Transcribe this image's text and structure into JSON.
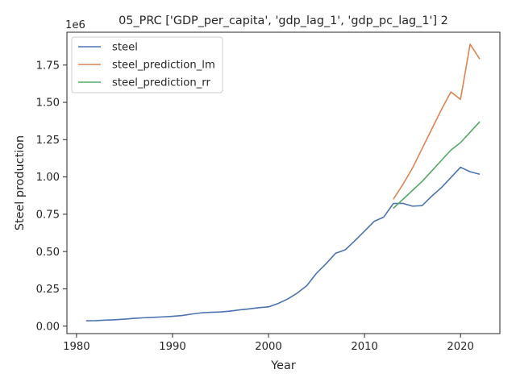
{
  "chart_data": {
    "type": "line",
    "title": "05_PRC ['GDP_per_capita', 'gdp_lag_1', 'gdp_pc_lag_1'] 2",
    "xlabel": "Year",
    "ylabel": "Steel production",
    "y_offset_label": "1e6",
    "xlim": [
      1979.0,
      2024.1
    ],
    "ylim": [
      -0.05,
      1.97
    ],
    "x_ticks": [
      1980,
      1990,
      2000,
      2010,
      2020
    ],
    "x_tick_labels": [
      "1980",
      "1990",
      "2000",
      "2010",
      "2020"
    ],
    "y_ticks": [
      0.0,
      0.25,
      0.5,
      0.75,
      1.0,
      1.25,
      1.5,
      1.75
    ],
    "y_tick_labels": [
      "0.00",
      "0.25",
      "0.50",
      "0.75",
      "1.00",
      "1.25",
      "1.50",
      "1.75"
    ],
    "grid": false,
    "legend_position": "upper-left",
    "series": [
      {
        "name": "steel",
        "color": "#4c72b0",
        "x": [
          1981,
          1982,
          1983,
          1984,
          1985,
          1986,
          1987,
          1988,
          1989,
          1990,
          1991,
          1992,
          1993,
          1994,
          1995,
          1996,
          1997,
          1998,
          1999,
          2000,
          2001,
          2002,
          2003,
          2004,
          2005,
          2006,
          2007,
          2008,
          2009,
          2010,
          2011,
          2012,
          2013,
          2014,
          2015,
          2016,
          2017,
          2018,
          2019,
          2020,
          2021,
          2022
        ],
        "y": [
          0.036,
          0.037,
          0.04,
          0.043,
          0.047,
          0.052,
          0.056,
          0.059,
          0.062,
          0.066,
          0.071,
          0.081,
          0.089,
          0.093,
          0.095,
          0.101,
          0.109,
          0.116,
          0.124,
          0.129,
          0.152,
          0.182,
          0.222,
          0.272,
          0.355,
          0.419,
          0.489,
          0.512,
          0.573,
          0.637,
          0.702,
          0.731,
          0.822,
          0.823,
          0.804,
          0.808,
          0.871,
          0.928,
          0.996,
          1.065,
          1.035,
          1.018
        ]
      },
      {
        "name": "steel_prediction_lm",
        "color": "#dd8452",
        "x": [
          2013,
          2014,
          2015,
          2016,
          2017,
          2018,
          2019,
          2020,
          2021,
          2022
        ],
        "y": [
          0.85,
          0.95,
          1.06,
          1.19,
          1.32,
          1.45,
          1.57,
          1.52,
          1.89,
          1.79
        ]
      },
      {
        "name": "steel_prediction_rr",
        "color": "#55a868",
        "x": [
          2013,
          2014,
          2015,
          2016,
          2017,
          2018,
          2019,
          2020,
          2021,
          2022
        ],
        "y": [
          0.79,
          0.85,
          0.91,
          0.97,
          1.04,
          1.11,
          1.18,
          1.23,
          1.3,
          1.37
        ]
      }
    ]
  }
}
